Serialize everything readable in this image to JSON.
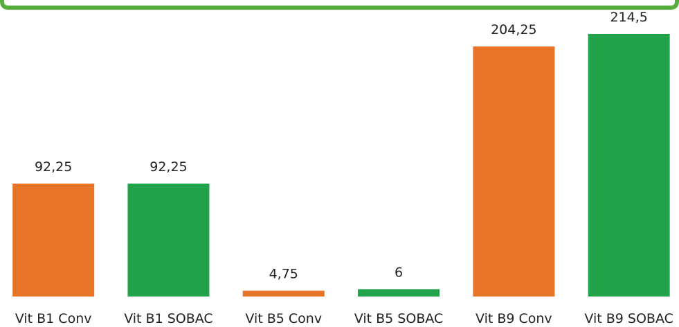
{
  "chart_data": {
    "type": "bar",
    "categories": [
      "Vit B1 Conv",
      "Vit B1 SOBAC",
      "Vit B5 Conv",
      "Vit B5 SOBAC",
      "Vit B9 Conv",
      "Vit B9 SOBAC"
    ],
    "values": [
      92.25,
      92.25,
      4.75,
      6,
      204.25,
      214.5
    ],
    "value_labels": [
      "92,25",
      "92,25",
      "4,75",
      "6",
      "204,25",
      "214,5"
    ],
    "colors": [
      "#e8742a",
      "#22a24a",
      "#e8742a",
      "#22a24a",
      "#e8742a",
      "#22a24a"
    ]
  }
}
